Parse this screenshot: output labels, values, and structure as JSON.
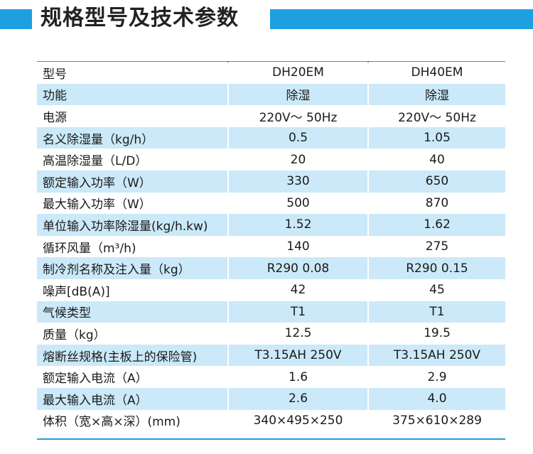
{
  "title": "规格型号及技术参数",
  "colors": {
    "accent": "#1e9fe0",
    "row_shade": "#cbe9f8"
  },
  "rows": [
    {
      "label": "型号",
      "v1": "DH20EM",
      "v2": "DH40EM"
    },
    {
      "label": "功能",
      "v1": "除湿",
      "v2": "除湿"
    },
    {
      "label": "电源",
      "v1": "220V～ 50Hz",
      "v2": "220V～ 50Hz"
    },
    {
      "label": "名义除湿量（kg/h）",
      "v1": "0.5",
      "v2": "1.05"
    },
    {
      "label": "高温除湿量（L/D）",
      "v1": "20",
      "v2": "40"
    },
    {
      "label": "额定输入功率（W）",
      "v1": "330",
      "v2": "650"
    },
    {
      "label": "最大输入功率（W）",
      "v1": "500",
      "v2": "870"
    },
    {
      "label": "单位输入功率除湿量(kg/h.kw)",
      "v1": "1.52",
      "v2": "1.62"
    },
    {
      "label": "循环风量（m³/h)",
      "v1": "140",
      "v2": "275"
    },
    {
      "label": "制冷剂名称及注入量（kg）",
      "v1": "R290  0.08",
      "v2": "R290  0.15"
    },
    {
      "label": "噪声[dB(A)]",
      "v1": "42",
      "v2": "45"
    },
    {
      "label": "气候类型",
      "v1": "T1",
      "v2": "T1"
    },
    {
      "label": "质量（kg）",
      "v1": "12.5",
      "v2": "19.5"
    },
    {
      "label": "熔断丝规格(主板上的保险管)",
      "v1": "T3.15AH 250V",
      "v2": "T3.15AH 250V"
    },
    {
      "label": "额定输入电流（A）",
      "v1": "1.6",
      "v2": "2.9"
    },
    {
      "label": "最大输入电流（A）",
      "v1": "2.6",
      "v2": "4.0"
    },
    {
      "label": "体积（宽×高×深）(mm)",
      "v1": "340×495×250",
      "v2": "375×610×289"
    }
  ]
}
